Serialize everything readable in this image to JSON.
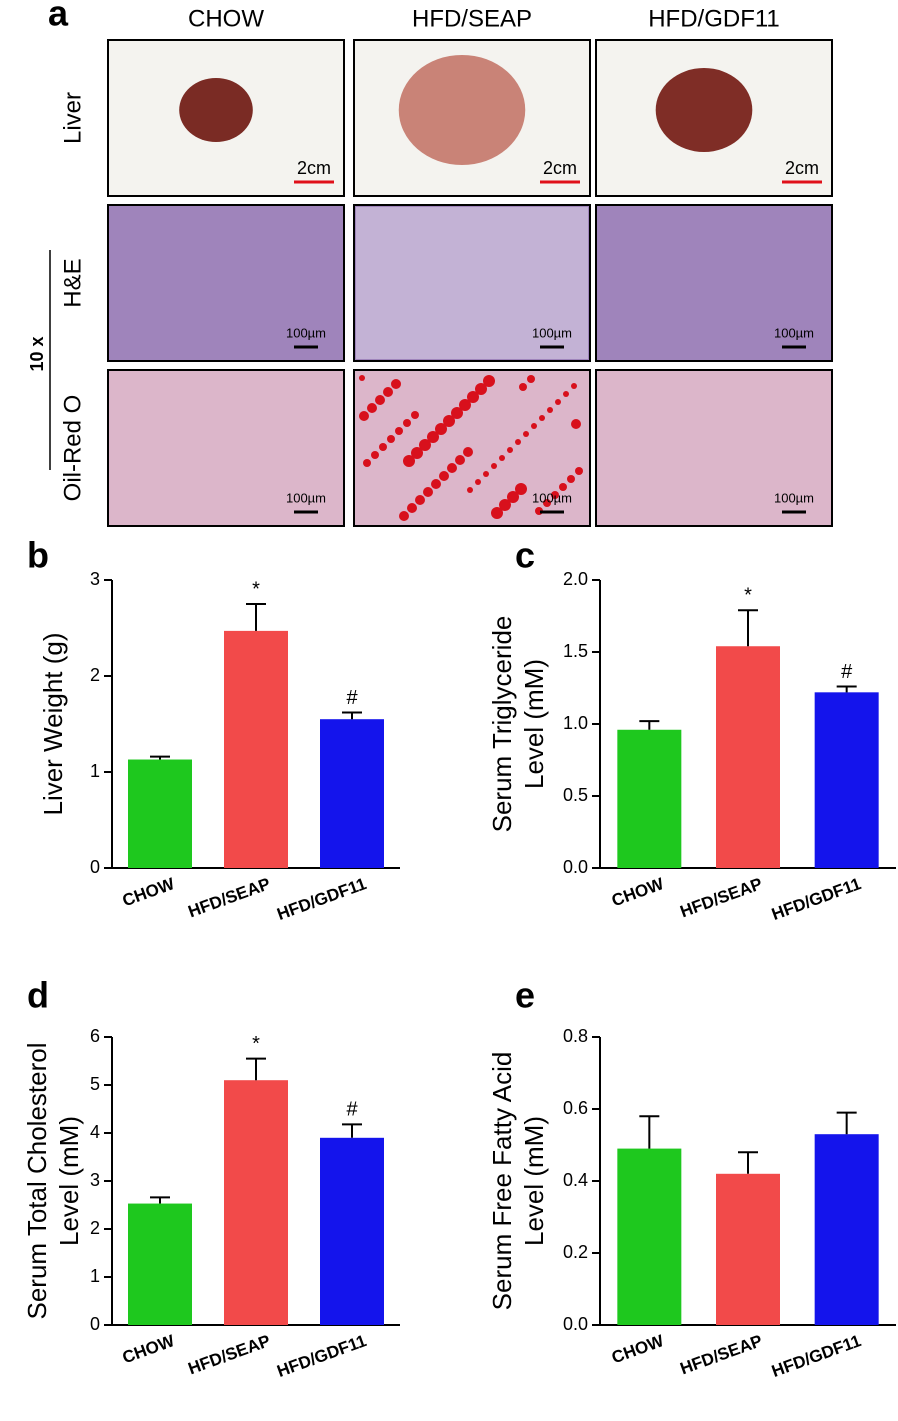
{
  "figure": {
    "panel_a": {
      "label": "a",
      "columns": [
        "CHOW",
        "HFD/SEAP",
        "HFD/GDF11"
      ],
      "rows": [
        "Liver",
        "H&E",
        "Oil-Red O"
      ],
      "magnification": "10 x",
      "scale_labels": [
        [
          "2cm",
          "2cm",
          "2cm"
        ],
        [
          "100µm",
          "100µm",
          "100µm"
        ],
        [
          "100µm",
          "100µm",
          "100µm"
        ]
      ]
    }
  },
  "chart_data": [
    {
      "type": "bar",
      "panel_label": "b",
      "ylabel": [
        "Liver Weight (g)"
      ],
      "categories": [
        "CHOW",
        "HFD/SEAP",
        "HFD/GDF11"
      ],
      "values": [
        1.13,
        2.47,
        1.55
      ],
      "errors": [
        0.03,
        0.28,
        0.07
      ],
      "colors": [
        "#1ec81e",
        "#f24a4a",
        "#1414ec"
      ],
      "significance": [
        null,
        "*",
        "#"
      ],
      "ylim": [
        0,
        3
      ],
      "yticks": [
        0,
        1,
        2,
        3
      ]
    },
    {
      "type": "bar",
      "panel_label": "c",
      "ylabel": [
        "Serum Triglyceride",
        "Level (mM)"
      ],
      "categories": [
        "CHOW",
        "HFD/SEAP",
        "HFD/GDF11"
      ],
      "values": [
        0.96,
        1.54,
        1.22
      ],
      "errors": [
        0.06,
        0.25,
        0.04
      ],
      "colors": [
        "#1ec81e",
        "#f24a4a",
        "#1414ec"
      ],
      "significance": [
        null,
        "*",
        "#"
      ],
      "ylim": [
        0,
        2
      ],
      "yticks": [
        {
          "value": 0,
          "label": "0.0"
        },
        0.5,
        {
          "value": 1,
          "label": "1.0"
        },
        1.5,
        {
          "value": 2,
          "label": "2.0"
        }
      ]
    },
    {
      "type": "bar",
      "panel_label": "d",
      "ylabel": [
        "Serum Total Cholesterol",
        "Level (mM)"
      ],
      "categories": [
        "CHOW",
        "HFD/SEAP",
        "HFD/GDF11"
      ],
      "values": [
        2.53,
        5.1,
        3.9
      ],
      "errors": [
        0.13,
        0.45,
        0.28
      ],
      "colors": [
        "#1ec81e",
        "#f24a4a",
        "#1414ec"
      ],
      "significance": [
        null,
        "*",
        "#"
      ],
      "ylim": [
        0,
        6
      ],
      "yticks": [
        0,
        1,
        2,
        3,
        4,
        5,
        6
      ]
    },
    {
      "type": "bar",
      "panel_label": "e",
      "ylabel": [
        "Serum Free Fatty Acid",
        "Level (mM)"
      ],
      "categories": [
        "CHOW",
        "HFD/SEAP",
        "HFD/GDF11"
      ],
      "values": [
        0.49,
        0.42,
        0.53
      ],
      "errors": [
        0.09,
        0.06,
        0.06
      ],
      "colors": [
        "#1ec81e",
        "#f24a4a",
        "#1414ec"
      ],
      "ylim": [
        0,
        0.8
      ],
      "yticks": [
        {
          "value": 0,
          "label": "0.0"
        },
        0.2,
        0.4,
        0.6,
        0.8
      ]
    }
  ]
}
